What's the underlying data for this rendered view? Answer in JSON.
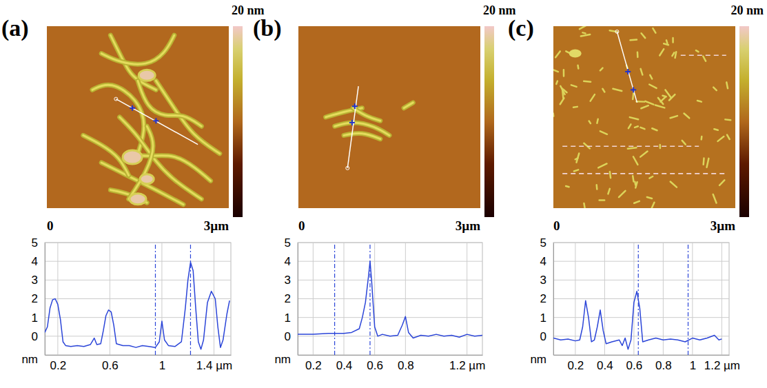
{
  "chart_data": [
    {
      "type": "line",
      "panel": "(a)",
      "image": {
        "colorbar": {
          "range": [
            0,
            20
          ],
          "ticks": [
            {
              "value": 20,
              "label": "20 nm"
            }
          ]
        },
        "scale_ticks": [
          {
            "value": 0,
            "label": "0"
          },
          {
            "value": 3,
            "label": "3µm"
          }
        ]
      },
      "x": [
        0.1,
        0.12,
        0.14,
        0.16,
        0.18,
        0.2,
        0.22,
        0.24,
        0.26,
        0.3,
        0.35,
        0.4,
        0.45,
        0.48,
        0.5,
        0.53,
        0.55,
        0.57,
        0.59,
        0.61,
        0.63,
        0.65,
        0.7,
        0.75,
        0.8,
        0.85,
        0.9,
        0.95,
        0.98,
        1.0,
        1.02,
        1.05,
        1.1,
        1.15,
        1.18,
        1.2,
        1.22,
        1.24,
        1.26,
        1.28,
        1.3,
        1.32,
        1.35,
        1.38,
        1.41,
        1.43,
        1.45,
        1.47,
        1.5,
        1.52
      ],
      "values": [
        0.2,
        0.5,
        1.5,
        1.95,
        2.0,
        1.7,
        0.9,
        -0.3,
        -0.5,
        -0.55,
        -0.5,
        -0.55,
        -0.45,
        -0.1,
        -0.45,
        -0.4,
        0.3,
        1.1,
        1.4,
        1.3,
        0.6,
        -0.4,
        -0.5,
        -0.5,
        -0.6,
        -0.5,
        -0.55,
        -0.6,
        -0.3,
        0.8,
        -0.2,
        -0.5,
        -0.55,
        -0.3,
        1.5,
        3.0,
        3.95,
        3.5,
        1.5,
        -0.3,
        -0.7,
        -0.2,
        1.8,
        2.4,
        2.0,
        0.5,
        -0.6,
        -0.2,
        1.2,
        1.9
      ],
      "xlim": [
        0.1,
        1.53
      ],
      "xticks": [
        0.2,
        0.6,
        1,
        {
          "value": 1.4,
          "label": "1.4 µm"
        }
      ],
      "ylim": [
        -1,
        5
      ],
      "yticks": [
        0,
        1,
        2,
        3,
        4,
        5
      ],
      "y_unit": "nm",
      "cursors": [
        0.95,
        1.22
      ],
      "grid": true,
      "color": "#2b45d8"
    },
    {
      "type": "line",
      "panel": "(b)",
      "image": {
        "colorbar": {
          "range": [
            0,
            20
          ],
          "ticks": [
            {
              "value": 20,
              "label": "20 nm"
            }
          ]
        },
        "scale_ticks": [
          {
            "value": 0,
            "label": "0"
          },
          {
            "value": 3,
            "label": "3µm"
          }
        ]
      },
      "x": [
        0.1,
        0.2,
        0.3,
        0.4,
        0.45,
        0.5,
        0.52,
        0.54,
        0.56,
        0.57,
        0.58,
        0.6,
        0.62,
        0.65,
        0.7,
        0.75,
        0.78,
        0.8,
        0.82,
        0.85,
        0.9,
        0.95,
        1.0,
        1.05,
        1.1,
        1.15,
        1.2,
        1.25,
        1.3
      ],
      "values": [
        0.1,
        0.1,
        0.15,
        0.15,
        0.2,
        0.4,
        1.0,
        1.8,
        3.2,
        4.0,
        3.0,
        0.5,
        0,
        0.1,
        0,
        0.05,
        0.6,
        1.05,
        0.2,
        -0.1,
        0.05,
        0,
        0.1,
        0,
        0.05,
        -0.05,
        0.1,
        0,
        0.05
      ],
      "xlim": [
        0.1,
        1.3
      ],
      "xticks": [
        0.2,
        0.4,
        0.6,
        0.8,
        {
          "value": 1.2,
          "label": "1.2 µm"
        }
      ],
      "ylim": [
        -1,
        5
      ],
      "yticks": [
        0,
        1,
        2,
        3,
        4,
        5
      ],
      "y_unit": "nm",
      "cursors": [
        0.34,
        0.57
      ],
      "grid": true,
      "color": "#2b45d8"
    },
    {
      "type": "line",
      "panel": "(c)",
      "image": {
        "colorbar": {
          "range": [
            0,
            20
          ],
          "ticks": [
            {
              "value": 20,
              "label": "20 nm"
            }
          ]
        },
        "scale_ticks": [
          {
            "value": 0,
            "label": "0"
          },
          {
            "value": 3,
            "label": "3µm"
          }
        ]
      },
      "x": [
        0.05,
        0.1,
        0.15,
        0.2,
        0.23,
        0.25,
        0.27,
        0.29,
        0.31,
        0.33,
        0.35,
        0.37,
        0.39,
        0.41,
        0.45,
        0.5,
        0.52,
        0.54,
        0.56,
        0.58,
        0.6,
        0.62,
        0.64,
        0.66,
        0.7,
        0.75,
        0.8,
        0.85,
        0.9,
        0.95,
        1.0,
        1.05,
        1.1,
        1.15,
        1.18,
        1.2
      ],
      "values": [
        -0.1,
        -0.2,
        -0.15,
        -0.25,
        -0.2,
        0.5,
        1.9,
        1.0,
        -0.3,
        -0.2,
        0.5,
        1.4,
        0.3,
        -0.4,
        -0.3,
        -0.2,
        -0.5,
        -0.1,
        -0.7,
        -0.2,
        1.8,
        2.4,
        1.5,
        -0.3,
        -0.2,
        -0.1,
        -0.2,
        -0.15,
        -0.2,
        -0.3,
        -0.1,
        -0.2,
        -0.1,
        0.05,
        -0.2,
        -0.15
      ],
      "xlim": [
        0.05,
        1.25
      ],
      "xticks": [
        0.2,
        0.4,
        0.6,
        0.8,
        1,
        {
          "value": 1.2,
          "label": "1.2 µm"
        }
      ],
      "ylim": [
        -1,
        5
      ],
      "yticks": [
        0,
        1,
        2,
        3,
        4,
        5
      ],
      "y_unit": "nm",
      "cursors": [
        0.63,
        0.97
      ],
      "grid": true,
      "color": "#2b45d8"
    }
  ]
}
